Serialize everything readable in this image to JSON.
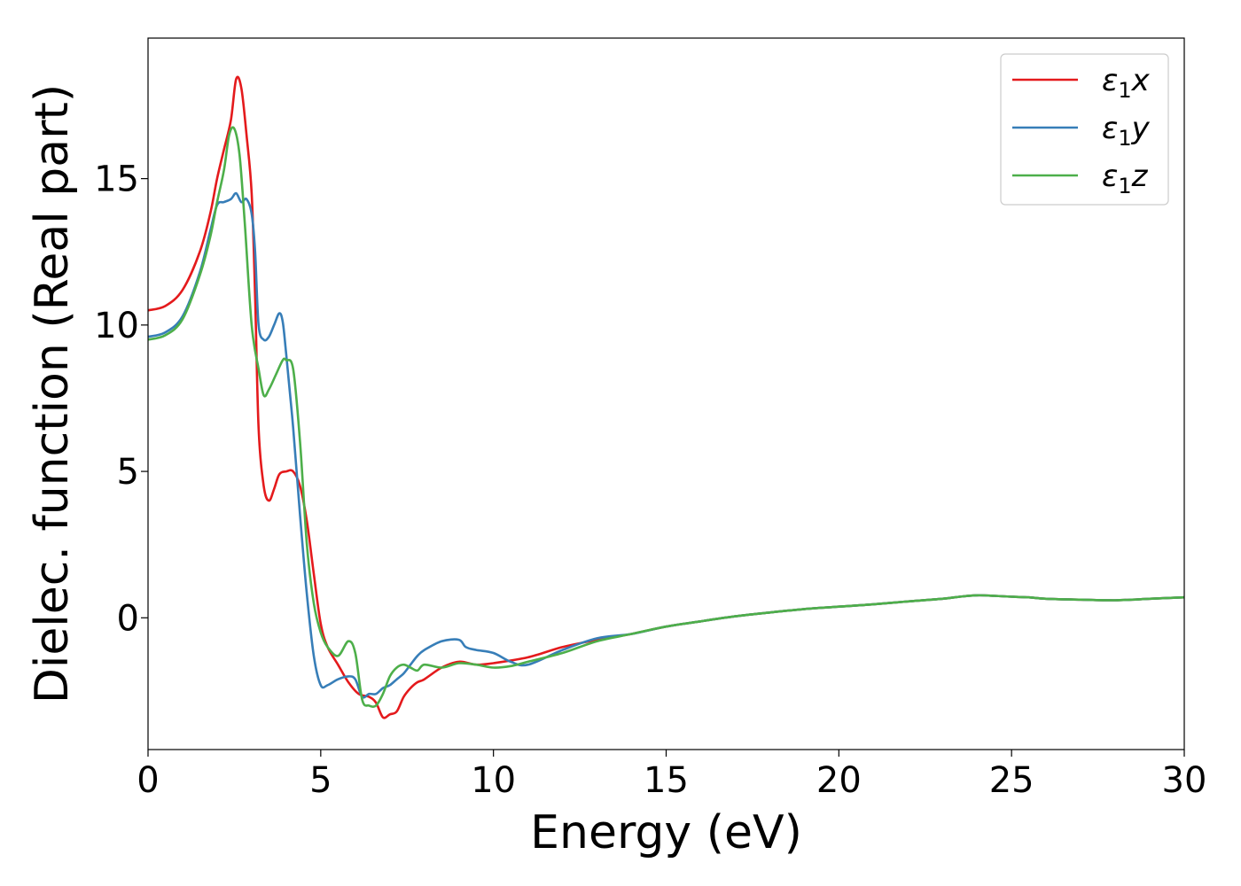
{
  "chart_data": {
    "type": "line",
    "title": "",
    "xlabel": "Energy (eV)",
    "ylabel": "Dielec. function (Real part)",
    "xlim": [
      0,
      30
    ],
    "ylim": [
      -4.5,
      19.8
    ],
    "xticks": [
      0,
      5,
      10,
      15,
      20,
      25,
      30
    ],
    "yticks": [
      0,
      5,
      10,
      15
    ],
    "grid": false,
    "legend_position": "top-right",
    "series": [
      {
        "name": "ε1x",
        "legend": {
          "symbol": "ε",
          "sub": "1",
          "var": "x"
        },
        "color": "#e41a1c",
        "x": [
          0,
          0.5,
          1.0,
          1.5,
          1.8,
          2.0,
          2.2,
          2.4,
          2.55,
          2.7,
          2.85,
          3.0,
          3.1,
          3.2,
          3.35,
          3.5,
          3.65,
          3.8,
          4.0,
          4.2,
          4.4,
          4.6,
          4.8,
          5.0,
          5.2,
          5.5,
          5.8,
          6.1,
          6.4,
          6.6,
          6.8,
          7.0,
          7.2,
          7.4,
          7.6,
          7.8,
          8.0,
          8.5,
          9.0,
          9.5,
          10.0,
          11.0,
          12.0,
          13.0,
          14.0,
          15.0,
          16.0,
          17.0,
          18.0,
          19.0,
          20.0,
          21.0,
          22.0,
          23.0,
          23.5,
          24.0,
          24.5,
          25.0,
          25.5,
          26.0,
          27.0,
          28.0,
          29.0,
          30.0
        ],
        "y": [
          10.5,
          10.65,
          11.2,
          12.5,
          13.8,
          15.0,
          16.0,
          17.0,
          18.4,
          18.1,
          16.5,
          14.5,
          11.0,
          6.5,
          4.5,
          4.0,
          4.4,
          4.9,
          5.0,
          5.0,
          4.5,
          3.3,
          1.5,
          -0.2,
          -1.0,
          -1.6,
          -2.2,
          -2.6,
          -2.7,
          -2.9,
          -3.4,
          -3.3,
          -3.2,
          -2.7,
          -2.4,
          -2.2,
          -2.1,
          -1.7,
          -1.5,
          -1.6,
          -1.55,
          -1.35,
          -1.0,
          -0.75,
          -0.55,
          -0.3,
          -0.12,
          0.05,
          0.18,
          0.3,
          0.38,
          0.46,
          0.56,
          0.65,
          0.72,
          0.77,
          0.75,
          0.72,
          0.7,
          0.65,
          0.62,
          0.6,
          0.65,
          0.7
        ]
      },
      {
        "name": "ε1y",
        "legend": {
          "symbol": "ε",
          "sub": "1",
          "var": "y"
        },
        "color": "#377eb8",
        "x": [
          0,
          0.5,
          1.0,
          1.5,
          1.8,
          2.0,
          2.2,
          2.4,
          2.55,
          2.7,
          2.85,
          3.0,
          3.1,
          3.2,
          3.35,
          3.5,
          3.65,
          3.8,
          3.9,
          4.0,
          4.2,
          4.4,
          4.6,
          4.8,
          5.0,
          5.2,
          5.5,
          5.8,
          6.0,
          6.2,
          6.4,
          6.6,
          6.8,
          7.0,
          7.2,
          7.4,
          7.6,
          7.8,
          8.0,
          8.5,
          9.0,
          9.2,
          9.5,
          10.0,
          10.5,
          11.0,
          12.0,
          13.0,
          14.0,
          15.0,
          16.0,
          17.0,
          18.0,
          19.0,
          20.0,
          21.0,
          22.0,
          23.0,
          23.5,
          24.0,
          24.5,
          25.0,
          25.5,
          26.0,
          27.0,
          28.0,
          29.0,
          30.0
        ],
        "y": [
          9.6,
          9.75,
          10.3,
          11.8,
          13.2,
          14.1,
          14.2,
          14.3,
          14.5,
          14.2,
          14.3,
          13.8,
          12.5,
          10.0,
          9.5,
          9.6,
          10.0,
          10.4,
          10.1,
          9.0,
          6.5,
          3.5,
          0.8,
          -1.3,
          -2.3,
          -2.3,
          -2.1,
          -2.0,
          -2.1,
          -2.7,
          -2.6,
          -2.6,
          -2.4,
          -2.3,
          -2.1,
          -1.9,
          -1.6,
          -1.3,
          -1.1,
          -0.8,
          -0.75,
          -1.0,
          -1.1,
          -1.2,
          -1.5,
          -1.6,
          -1.1,
          -0.7,
          -0.55,
          -0.3,
          -0.12,
          0.05,
          0.18,
          0.3,
          0.38,
          0.46,
          0.56,
          0.65,
          0.72,
          0.77,
          0.75,
          0.72,
          0.7,
          0.65,
          0.62,
          0.6,
          0.65,
          0.7
        ]
      },
      {
        "name": "ε1z",
        "legend": {
          "symbol": "ε",
          "sub": "1",
          "var": "z"
        },
        "color": "#4daf4a",
        "x": [
          0,
          0.5,
          1.0,
          1.5,
          1.8,
          2.0,
          2.2,
          2.35,
          2.5,
          2.65,
          2.8,
          3.0,
          3.2,
          3.35,
          3.5,
          3.7,
          3.9,
          4.0,
          4.2,
          4.4,
          4.6,
          4.8,
          5.0,
          5.2,
          5.5,
          5.8,
          6.0,
          6.2,
          6.4,
          6.6,
          6.8,
          7.0,
          7.2,
          7.4,
          7.6,
          7.8,
          8.0,
          8.5,
          9.0,
          9.5,
          10.0,
          10.5,
          11.0,
          12.0,
          13.0,
          14.0,
          15.0,
          16.0,
          17.0,
          18.0,
          19.0,
          20.0,
          21.0,
          22.0,
          23.0,
          23.5,
          24.0,
          24.5,
          25.0,
          25.5,
          26.0,
          27.0,
          28.0,
          29.0,
          30.0
        ],
        "y": [
          9.5,
          9.65,
          10.2,
          11.7,
          13.0,
          14.2,
          15.3,
          16.5,
          16.7,
          15.8,
          13.5,
          10.0,
          8.5,
          7.6,
          7.8,
          8.3,
          8.8,
          8.8,
          8.5,
          6.0,
          2.5,
          0.5,
          -0.5,
          -1.0,
          -1.3,
          -0.8,
          -1.2,
          -2.8,
          -3.0,
          -3.0,
          -2.6,
          -2.0,
          -1.7,
          -1.6,
          -1.7,
          -1.8,
          -1.6,
          -1.7,
          -1.55,
          -1.6,
          -1.7,
          -1.65,
          -1.5,
          -1.2,
          -0.8,
          -0.55,
          -0.3,
          -0.12,
          0.05,
          0.18,
          0.3,
          0.38,
          0.46,
          0.56,
          0.65,
          0.72,
          0.77,
          0.75,
          0.72,
          0.7,
          0.65,
          0.62,
          0.6,
          0.65,
          0.7
        ]
      }
    ]
  }
}
